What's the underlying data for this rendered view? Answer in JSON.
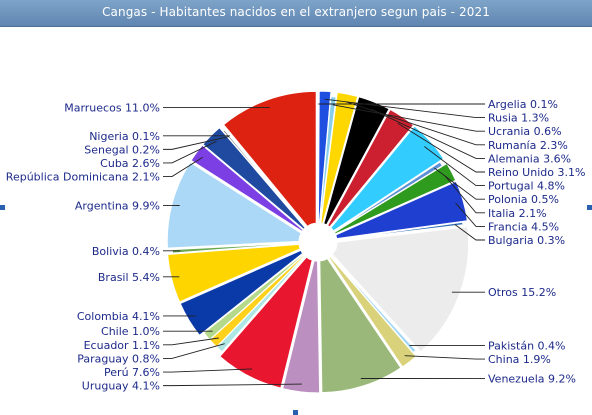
{
  "chart_data": {
    "type": "pie",
    "title": "Cangas - Habitantes nacidos en el extranjero segun pais - 2021",
    "unit": "%",
    "slices": [
      {
        "name": "Argelia",
        "value": 0.1,
        "label": "Argelia 0.1%",
        "color": "#3a5fcd",
        "side": "right",
        "exploded": false
      },
      {
        "name": "Rusia",
        "value": 1.3,
        "label": "Rusia 1.3%",
        "color": "#1e4fe0",
        "side": "right",
        "exploded": true
      },
      {
        "name": "Ucrania",
        "value": 0.6,
        "label": "Ucrania 0.6%",
        "color": "#87ceeb",
        "side": "right",
        "exploded": false
      },
      {
        "name": "Rumanía",
        "value": 2.3,
        "label": "Rumanía 2.3%",
        "color": "#ffd700",
        "side": "right",
        "exploded": true
      },
      {
        "name": "Alemania",
        "value": 3.6,
        "label": "Alemania 3.6%",
        "color": "#000000",
        "side": "right",
        "exploded": true
      },
      {
        "name": "Reino Unido",
        "value": 3.1,
        "label": "Reino Unido 3.1%",
        "color": "#cc1f2f",
        "side": "right",
        "exploded": true
      },
      {
        "name": "Portugal",
        "value": 4.8,
        "label": "Portugal 4.8%",
        "color": "#33ccff",
        "side": "right",
        "exploded": true
      },
      {
        "name": "Polonia",
        "value": 0.5,
        "label": "Polonia 0.5%",
        "color": "#5b8fd6",
        "side": "right",
        "exploded": false
      },
      {
        "name": "Italia",
        "value": 2.1,
        "label": "Italia 2.1%",
        "color": "#2e9b1f",
        "side": "right",
        "exploded": true
      },
      {
        "name": "Francia",
        "value": 4.5,
        "label": "Francia 4.5%",
        "color": "#1f3fd1",
        "side": "right",
        "exploded": true
      },
      {
        "name": "Bulgaria",
        "value": 0.3,
        "label": "Bulgaria 0.3%",
        "color": "#2f6db5",
        "side": "right",
        "exploded": false
      },
      {
        "name": "Otros",
        "value": 15.2,
        "label": "Otros 15.2%",
        "color": "#ececec",
        "side": "right",
        "exploded": true
      },
      {
        "name": "Pakistán",
        "value": 0.4,
        "label": "Pakistán 0.4%",
        "color": "#9dd6f5",
        "side": "right",
        "exploded": false
      },
      {
        "name": "China",
        "value": 1.9,
        "label": "China 1.9%",
        "color": "#d9d27a",
        "side": "right",
        "exploded": true
      },
      {
        "name": "Venezuela",
        "value": 9.2,
        "label": "Venezuela 9.2%",
        "color": "#9ab87a",
        "side": "right",
        "exploded": true
      },
      {
        "name": "Uruguay",
        "value": 4.1,
        "label": "Uruguay 4.1%",
        "color": "#bb8fbf",
        "side": "left",
        "exploded": true
      },
      {
        "name": "Perú",
        "value": 7.6,
        "label": "Perú 7.6%",
        "color": "#e8162e",
        "side": "left",
        "exploded": true
      },
      {
        "name": "Paraguay",
        "value": 0.8,
        "label": "Paraguay 0.8%",
        "color": "#aee6e6",
        "side": "left",
        "exploded": false
      },
      {
        "name": "Ecuador",
        "value": 1.1,
        "label": "Ecuador 1.1%",
        "color": "#ffd11a",
        "side": "left",
        "exploded": false
      },
      {
        "name": "Chile",
        "value": 1.0,
        "label": "Chile 1.0%",
        "color": "#b5d98b",
        "side": "left",
        "exploded": false
      },
      {
        "name": "Colombia",
        "value": 4.1,
        "label": "Colombia 4.1%",
        "color": "#0a3aa8",
        "side": "left",
        "exploded": true
      },
      {
        "name": "Brasil",
        "value": 5.4,
        "label": "Brasil 5.4%",
        "color": "#ffd500",
        "side": "left",
        "exploded": true
      },
      {
        "name": "Bolivia",
        "value": 0.4,
        "label": "Bolivia 0.4%",
        "color": "#6aa84f",
        "side": "left",
        "exploded": false
      },
      {
        "name": "Argentina",
        "value": 9.9,
        "label": "Argentina 9.9%",
        "color": "#acd8f7",
        "side": "left",
        "exploded": true
      },
      {
        "name": "República Dominicana",
        "value": 2.1,
        "label": "República Dominicana 2.1%",
        "color": "#7b3fe4",
        "side": "left",
        "exploded": true
      },
      {
        "name": "Cuba",
        "value": 2.6,
        "label": "Cuba 2.6%",
        "color": "#1f4aa0",
        "side": "left",
        "exploded": true
      },
      {
        "name": "Senegal",
        "value": 0.2,
        "label": "Senegal 0.2%",
        "color": "#4a4a4a",
        "side": "left",
        "exploded": false
      },
      {
        "name": "Nigeria",
        "value": 0.1,
        "label": "Nigeria 0.1%",
        "color": "#6d87b5",
        "side": "left",
        "exploded": false
      },
      {
        "name": "Marruecos",
        "value": 11.0,
        "label": "Marruecos 11.0%",
        "color": "#dd2211",
        "side": "left",
        "exploded": true
      }
    ],
    "start_angle_deg": 0,
    "direction": "clockwise",
    "legend": "none"
  }
}
